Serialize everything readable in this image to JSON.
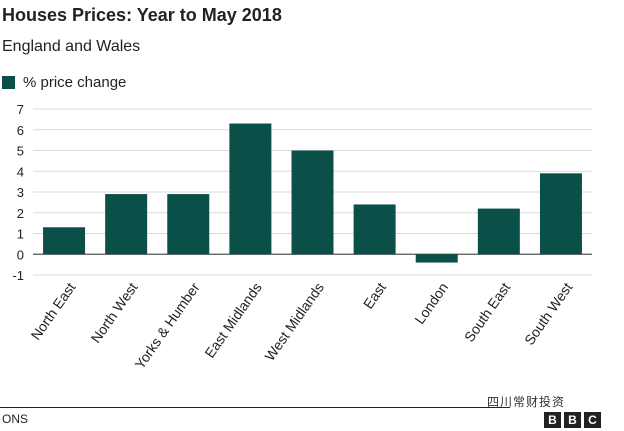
{
  "title": "Houses Prices: Year to May 2018",
  "subtitle": "England and Wales",
  "legend": {
    "label": "% price change",
    "color": "#0b5048"
  },
  "source": "ONS",
  "watermark": "四川常财投资",
  "logo_letters": [
    "B",
    "B",
    "C"
  ],
  "chart_data": {
    "type": "bar",
    "title": "Houses Prices: Year to May 2018",
    "subtitle": "England and Wales",
    "categories": [
      "North East",
      "North West",
      "Yorks & Humber",
      "East Midlands",
      "West Midlands",
      "East",
      "London",
      "South East",
      "South West"
    ],
    "series": [
      {
        "name": "% price change",
        "values": [
          1.3,
          2.9,
          2.9,
          6.3,
          5.0,
          2.4,
          -0.4,
          2.2,
          3.9
        ],
        "color": "#0b5048"
      }
    ],
    "ylim": [
      -1,
      7
    ],
    "yticks": [
      -1,
      0,
      1,
      2,
      3,
      4,
      5,
      6,
      7
    ],
    "grid": true,
    "legend_position": "top-left"
  }
}
